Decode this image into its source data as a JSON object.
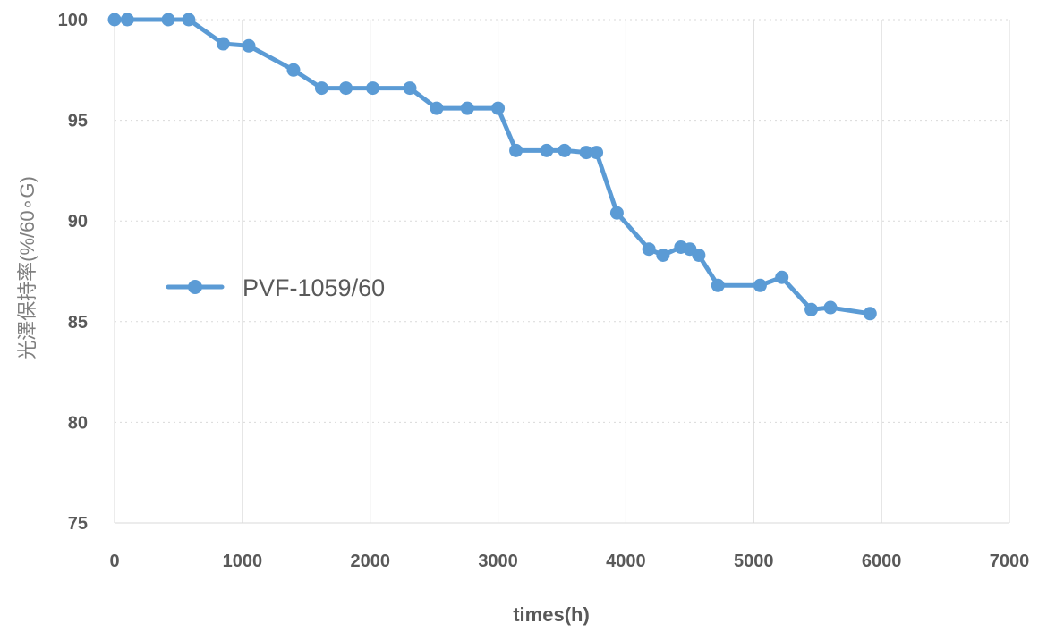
{
  "chart_data": {
    "type": "line",
    "xlabel": "times(h)",
    "ylabel": "光澤保持率(%/60∘G)",
    "xlim": [
      0,
      7000
    ],
    "ylim": [
      75,
      100
    ],
    "xticks": [
      0,
      1000,
      2000,
      3000,
      4000,
      5000,
      6000,
      7000
    ],
    "yticks": [
      75,
      80,
      85,
      90,
      95,
      100
    ],
    "xtick_labels": [
      "0",
      "1000",
      "2000",
      "3000",
      "4000",
      "5000",
      "6000",
      "7000"
    ],
    "ytick_labels": [
      "75",
      "80",
      "85",
      "90",
      "95",
      "100"
    ],
    "grid": "vertical solid and horizontal dotted",
    "legend_position": "left-middle",
    "series": [
      {
        "name": "PVF-1059/60",
        "color": "#5b9bd5",
        "marker": "circle",
        "x": [
          0,
          100,
          420,
          580,
          850,
          1050,
          1400,
          1620,
          1810,
          2020,
          2310,
          2520,
          2760,
          3000,
          3140,
          3380,
          3520,
          3690,
          3770,
          3930,
          4180,
          4290,
          4430,
          4500,
          4570,
          4720,
          5050,
          5220,
          5450,
          5600,
          5910
        ],
        "y": [
          100,
          100,
          100,
          100,
          98.8,
          98.7,
          97.5,
          96.6,
          96.6,
          96.6,
          96.6,
          95.6,
          95.6,
          95.6,
          93.5,
          93.5,
          93.5,
          93.4,
          93.4,
          90.4,
          88.6,
          88.3,
          88.7,
          88.6,
          88.3,
          86.8,
          86.8,
          87.2,
          85.6,
          85.7,
          85.4
        ]
      }
    ]
  }
}
